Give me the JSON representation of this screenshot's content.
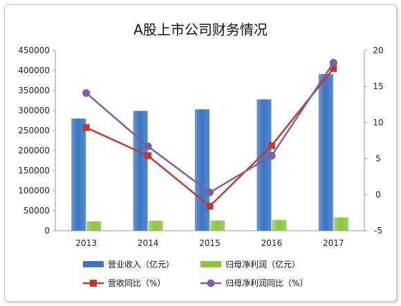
{
  "chart_data": {
    "type": "bar",
    "title": "A股上市公司财务情况",
    "categories": [
      "2013",
      "2014",
      "2015",
      "2016",
      "2017"
    ],
    "y_left": {
      "min": 0,
      "max": 450000,
      "step": 50000,
      "ticks": [
        "0",
        "50000",
        "100000",
        "150000",
        "200000",
        "250000",
        "300000",
        "350000",
        "400000",
        "450000"
      ]
    },
    "y_right": {
      "min": -5,
      "max": 20,
      "step": 5,
      "ticks": [
        "-5",
        "0",
        "5",
        "10",
        "15",
        "20"
      ]
    },
    "bar_series": [
      {
        "name": "营业收入（亿元）",
        "color": "#3a75c4",
        "values": [
          280000,
          299000,
          303000,
          328000,
          391000
        ]
      },
      {
        "name": "归母净利润（亿元）",
        "color": "#8cc63f",
        "values": [
          23500,
          25000,
          25500,
          27000,
          33000
        ]
      }
    ],
    "line_series": [
      {
        "name": "营收同比（%）",
        "color": "#c0392b",
        "marker": "square",
        "values": [
          9.3,
          5.4,
          -1.6,
          6.8,
          17.5
        ]
      },
      {
        "name": "归母净利润同比（%）",
        "color": "#7b5ea7",
        "marker": "circle",
        "values": [
          14.1,
          6.7,
          0.3,
          5.4,
          18.3
        ]
      }
    ],
    "grid": false,
    "legend_position": "bottom"
  }
}
